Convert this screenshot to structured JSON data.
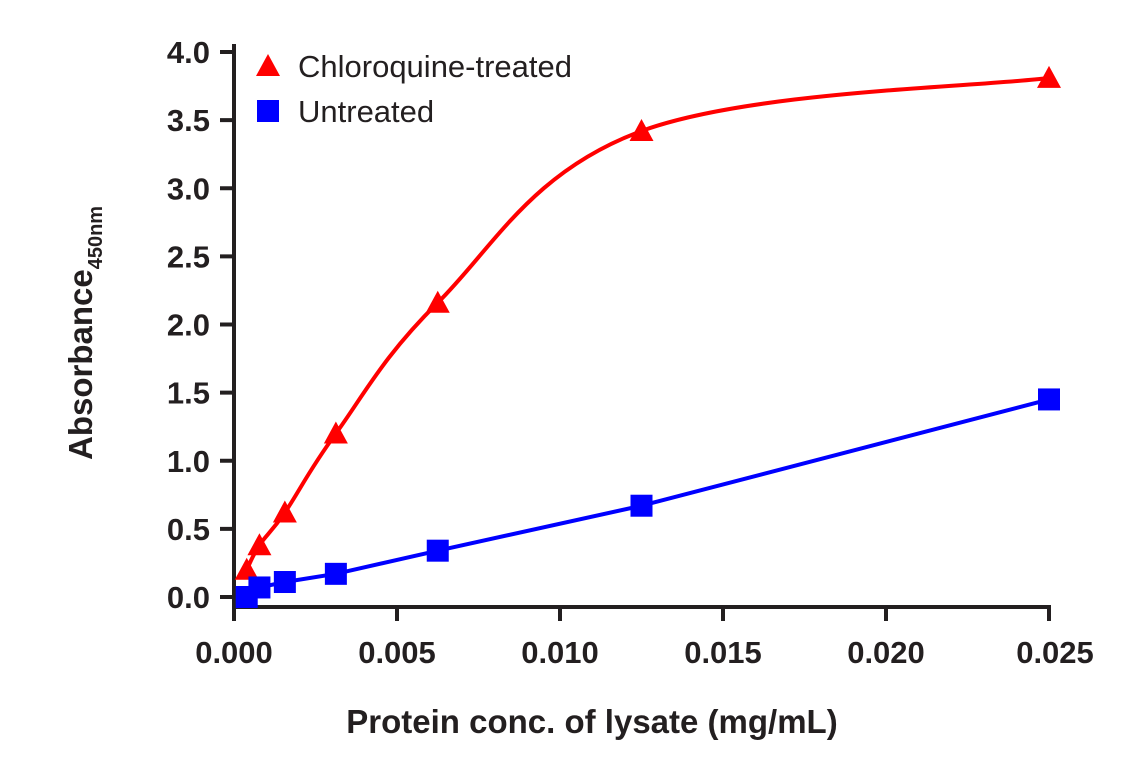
{
  "chart_data": {
    "type": "line",
    "title": "",
    "xlabel": "Protein conc. of lysate (mg/mL)",
    "ylabel": "Absorbance",
    "ylabel_subscript": "450nm",
    "xlim": [
      0,
      0.025
    ],
    "ylim": [
      0,
      4.0
    ],
    "xticks": [
      "0.000",
      "0.005",
      "0.010",
      "0.015",
      "0.020",
      "0.025"
    ],
    "yticks": [
      "0.0",
      "0.5",
      "1.0",
      "1.5",
      "2.0",
      "2.5",
      "3.0",
      "3.5",
      "4.0"
    ],
    "grid": false,
    "legend_position": "top-left",
    "series": [
      {
        "name": "Chloroquine-treated",
        "color": "#ff0000",
        "marker": "triangle",
        "x": [
          0.00039,
          0.00078,
          0.00156,
          0.003125,
          0.00625,
          0.0125,
          0.025
        ],
        "y": [
          0.2,
          0.38,
          0.62,
          1.2,
          2.16,
          3.42,
          3.81
        ]
      },
      {
        "name": "Untreated",
        "color": "#0000ff",
        "marker": "square",
        "x": [
          0.00039,
          0.00078,
          0.00156,
          0.003125,
          0.00625,
          0.0125,
          0.025
        ],
        "y": [
          0.0,
          0.07,
          0.11,
          0.17,
          0.34,
          0.67,
          1.45
        ]
      }
    ]
  }
}
